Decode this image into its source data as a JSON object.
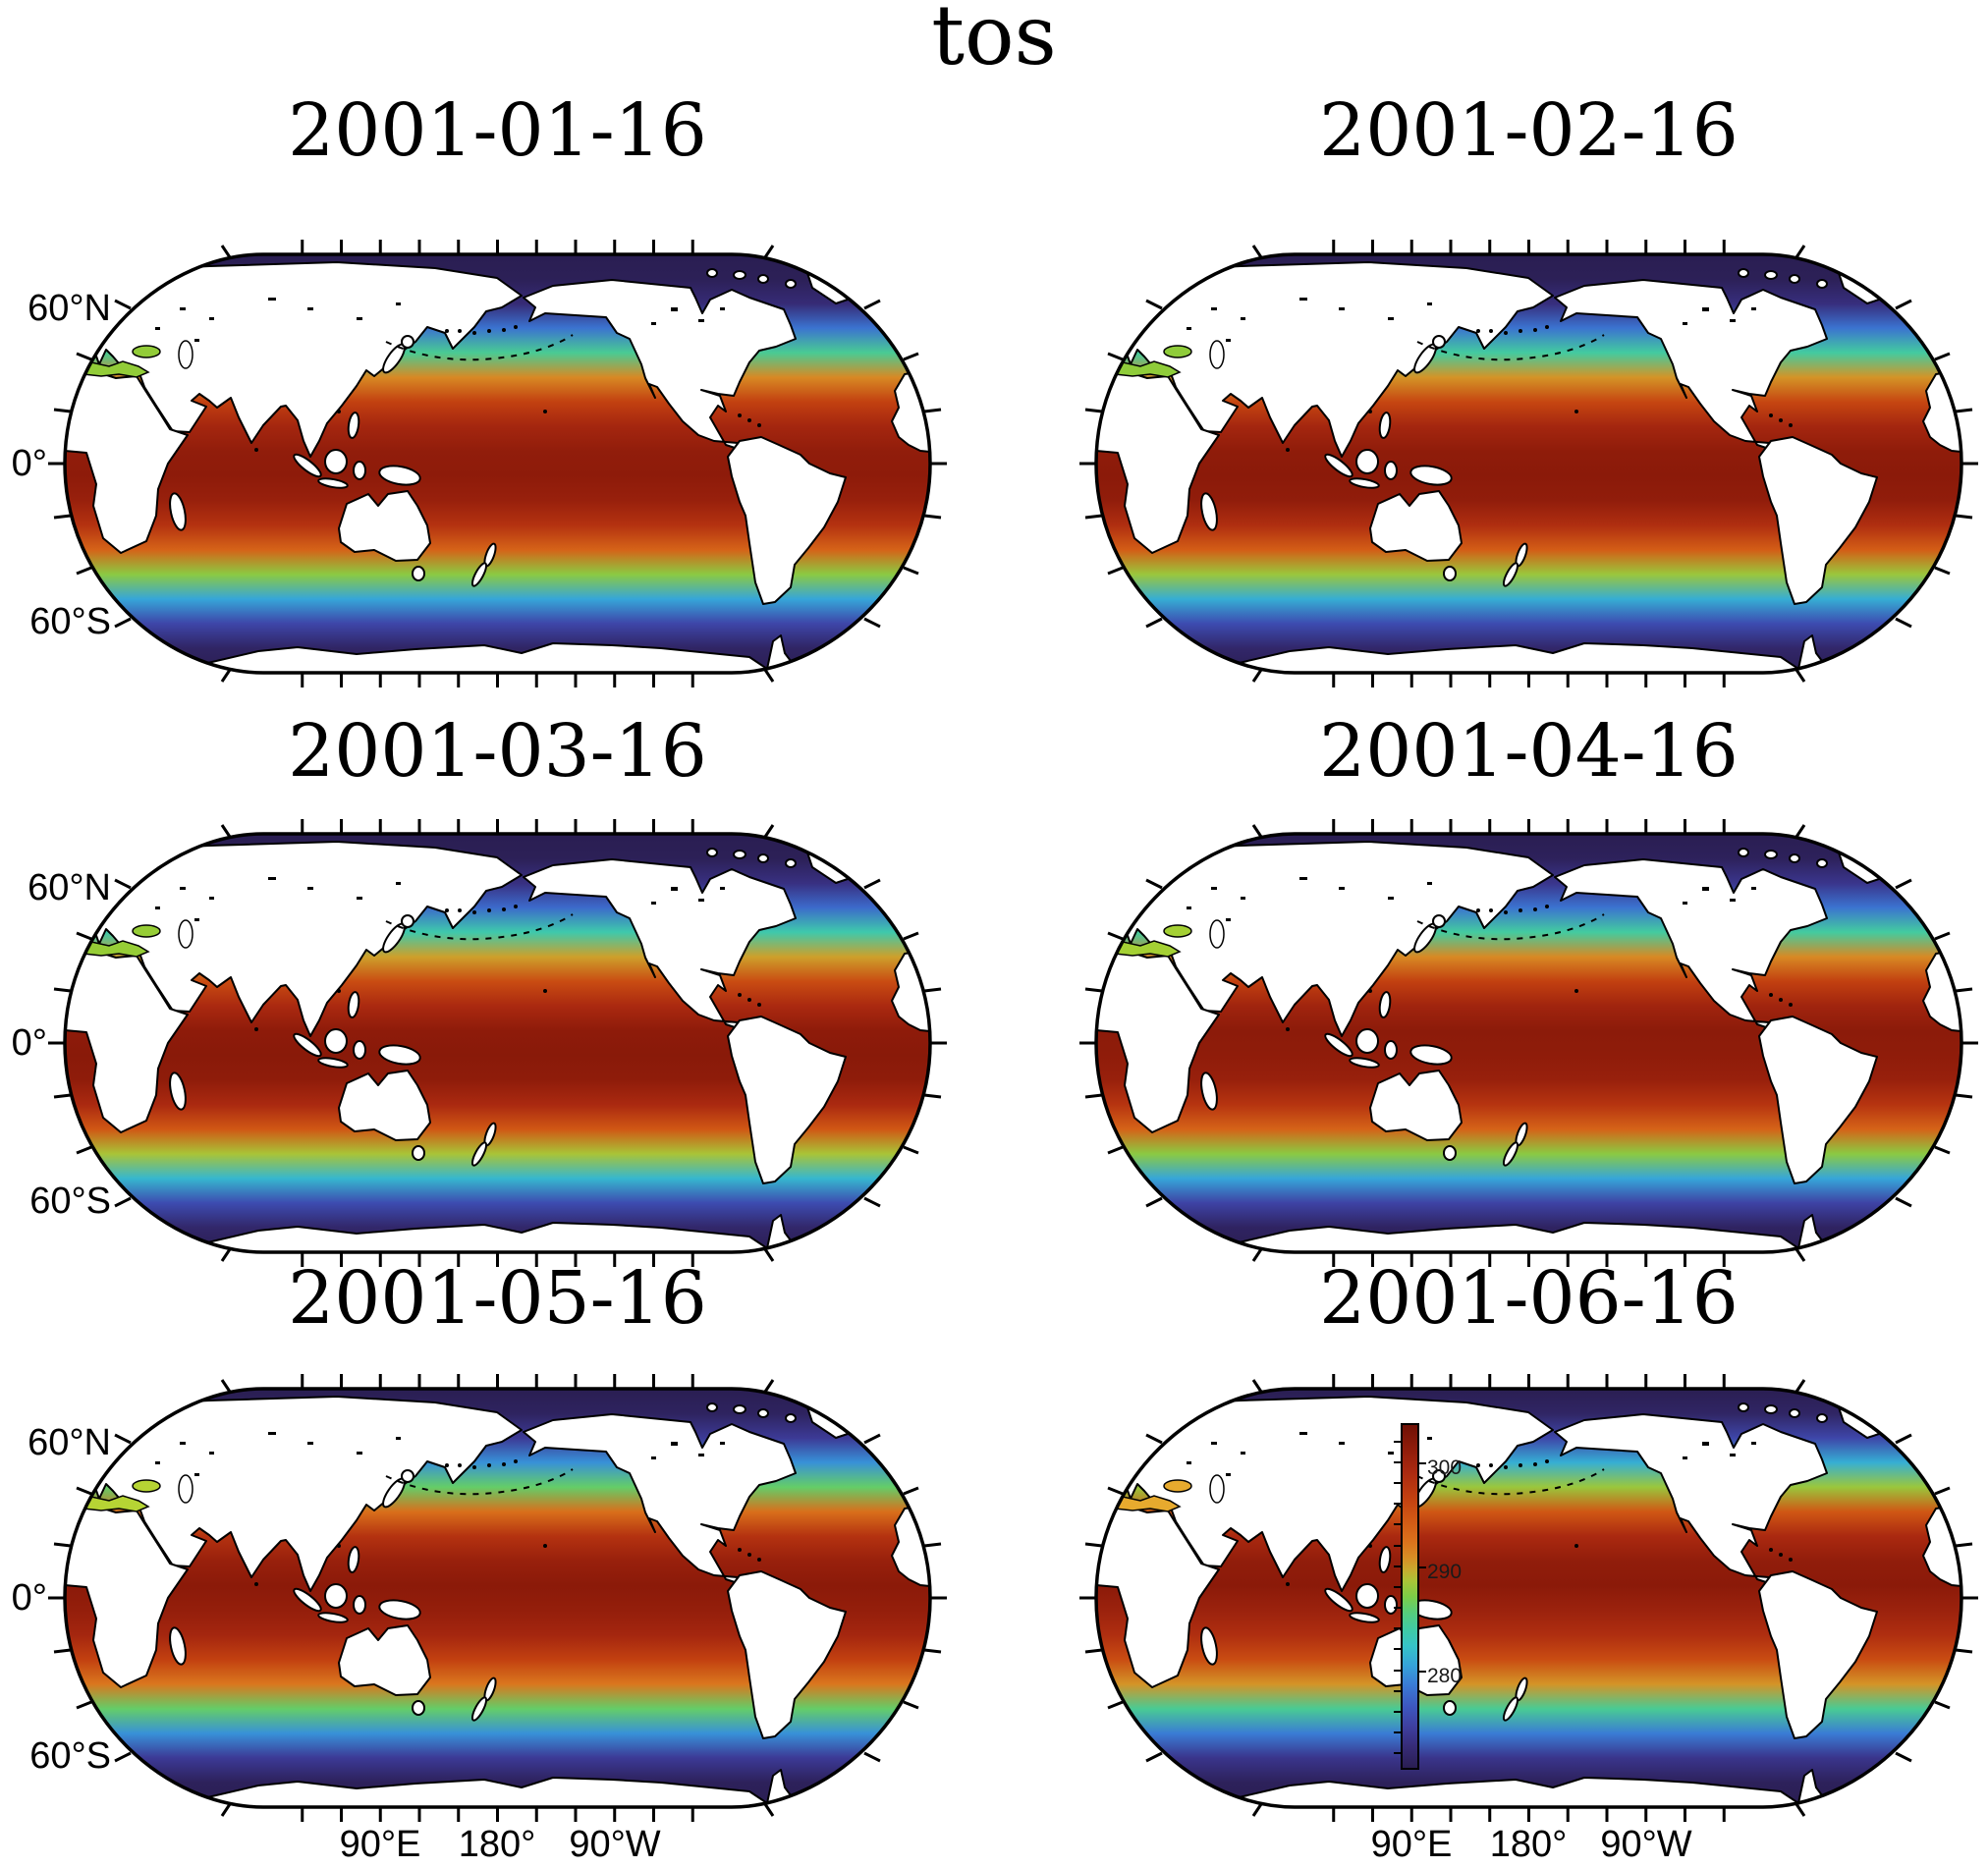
{
  "figure": {
    "title": "tos"
  },
  "panels": [
    {
      "date": "2001-01-16",
      "mediterranean_color": "#92cc38"
    },
    {
      "date": "2001-02-16",
      "mediterranean_color": "#8fcc3a"
    },
    {
      "date": "2001-03-16",
      "mediterranean_color": "#96cd36"
    },
    {
      "date": "2001-04-16",
      "mediterranean_color": "#a4d034"
    },
    {
      "date": "2001-05-16",
      "mediterranean_color": "#b6d434"
    },
    {
      "date": "2001-06-16",
      "mediterranean_color": "#e7aa2e"
    }
  ],
  "axes": {
    "y_ticks": [
      {
        "label": "60°N",
        "lat": 60
      },
      {
        "label": "0°",
        "lat": 0
      },
      {
        "label": "60°S",
        "lat": -60
      }
    ],
    "x_ticks": [
      {
        "label": "90°E",
        "lon": 90
      },
      {
        "label": "180°",
        "lon": 180
      },
      {
        "label": "90°W",
        "lon": 270
      }
    ]
  },
  "colorbar": {
    "tick_labels": [
      "300",
      "290",
      "280"
    ],
    "tick_values": [
      300,
      290,
      280
    ],
    "top_value": 304.5,
    "bottom_value": 271.5,
    "gradient": [
      {
        "frac": 0.0,
        "color": "#701005"
      },
      {
        "frac": 0.07,
        "color": "#8f1c0a"
      },
      {
        "frac": 0.135,
        "color": "#aa2910"
      },
      {
        "frac": 0.21,
        "color": "#c23f10"
      },
      {
        "frac": 0.28,
        "color": "#d25a15"
      },
      {
        "frac": 0.34,
        "color": "#da721c"
      },
      {
        "frac": 0.385,
        "color": "#d88d25"
      },
      {
        "frac": 0.42,
        "color": "#c9a92e"
      },
      {
        "frac": 0.455,
        "color": "#a9c437"
      },
      {
        "frac": 0.5,
        "color": "#7ccd47"
      },
      {
        "frac": 0.55,
        "color": "#54cd7e"
      },
      {
        "frac": 0.6,
        "color": "#3fcaa8"
      },
      {
        "frac": 0.645,
        "color": "#36c3c8"
      },
      {
        "frac": 0.7,
        "color": "#36a4da"
      },
      {
        "frac": 0.755,
        "color": "#3a7dd6"
      },
      {
        "frac": 0.82,
        "color": "#3d58c0"
      },
      {
        "frac": 0.88,
        "color": "#3e3fa0"
      },
      {
        "frac": 0.94,
        "color": "#362b76"
      },
      {
        "frac": 1.0,
        "color": "#2a1e52"
      }
    ]
  },
  "chart_data": {
    "type": "heatmap",
    "title": "tos",
    "facet_titles": [
      "2001-01-16",
      "2001-02-16",
      "2001-03-16",
      "2001-04-16",
      "2001-05-16",
      "2001-06-16"
    ],
    "layout": "3 rows x 2 columns of global maps, Robinson-style projection centered on 180° longitude",
    "xlabel_ticks": [
      "90°E",
      "180°",
      "90°W"
    ],
    "ylabel_ticks": [
      "60°N",
      "0°",
      "60°S"
    ],
    "colorbar": {
      "tick_labels": [
        "300",
        "290",
        "280"
      ],
      "tick_values": [
        300,
        290,
        280
      ],
      "approx_value_range": [
        271.5,
        304.5
      ]
    },
    "lats": [
      85,
      75,
      65,
      55,
      45,
      35,
      25,
      15,
      5,
      -5,
      -15,
      -25,
      -35,
      -45,
      -55,
      -65,
      -75,
      -85
    ],
    "series": [
      {
        "name": "2001-01-16",
        "values": [
          271.5,
          271.8,
          273.5,
          279.0,
          285.5,
          292.0,
          297.5,
          300.5,
          302.0,
          302.3,
          301.5,
          299.0,
          294.5,
          288.5,
          281.5,
          276.0,
          272.5,
          271.5
        ]
      },
      {
        "name": "2001-02-16",
        "values": [
          271.5,
          271.8,
          273.8,
          279.0,
          285.0,
          291.5,
          297.0,
          300.5,
          302.2,
          302.5,
          302.0,
          299.5,
          295.0,
          289.0,
          282.0,
          276.5,
          272.8,
          271.5
        ]
      },
      {
        "name": "2001-03-16",
        "values": [
          271.5,
          271.8,
          274.0,
          278.5,
          284.5,
          291.0,
          296.5,
          300.0,
          302.3,
          302.6,
          302.2,
          300.0,
          295.5,
          289.5,
          282.5,
          276.5,
          272.8,
          271.5
        ]
      },
      {
        "name": "2001-04-16",
        "values": [
          271.5,
          272.0,
          274.5,
          279.0,
          285.0,
          292.0,
          297.5,
          300.8,
          302.4,
          302.2,
          301.5,
          298.8,
          294.5,
          288.5,
          281.5,
          275.8,
          272.3,
          271.5
        ]
      },
      {
        "name": "2001-05-16",
        "values": [
          271.5,
          272.2,
          275.0,
          280.5,
          287.0,
          293.5,
          299.0,
          301.5,
          302.5,
          301.8,
          300.5,
          297.5,
          293.0,
          287.0,
          280.5,
          275.0,
          272.0,
          271.5
        ]
      },
      {
        "name": "2001-06-16",
        "values": [
          271.5,
          272.5,
          276.0,
          282.0,
          289.0,
          295.5,
          300.0,
          302.0,
          302.5,
          301.2,
          299.5,
          296.5,
          291.5,
          285.5,
          279.5,
          274.5,
          272.0,
          271.5
        ]
      }
    ]
  }
}
